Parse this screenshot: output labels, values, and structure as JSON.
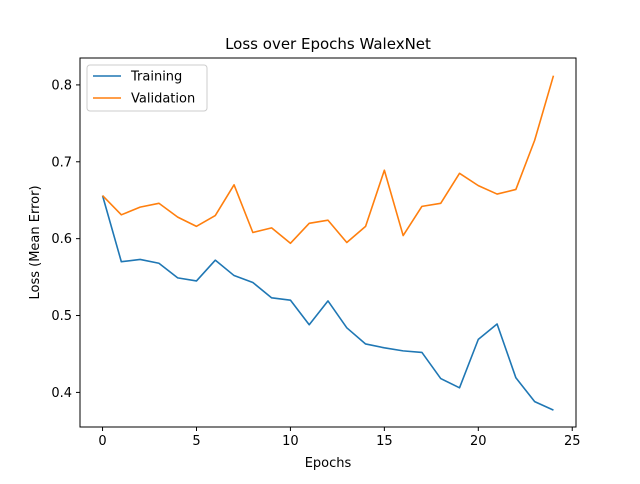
{
  "chart_data": {
    "type": "line",
    "title": "Loss over Epochs WalexNet",
    "xlabel": "Epochs",
    "ylabel": "Loss (Mean Error)",
    "xlim": [
      -1.2,
      25.2
    ],
    "ylim": [
      0.355,
      0.835
    ],
    "xticks": [
      0,
      5,
      10,
      15,
      20,
      25
    ],
    "yticks": [
      0.4,
      0.5,
      0.6,
      0.7,
      0.8
    ],
    "grid": false,
    "legend_position": "top-left",
    "x": [
      0,
      1,
      2,
      3,
      4,
      5,
      6,
      7,
      8,
      9,
      10,
      11,
      12,
      13,
      14,
      15,
      16,
      17,
      18,
      19,
      20,
      21,
      22,
      23,
      24
    ],
    "series": [
      {
        "name": "Training",
        "color": "#1f77b4",
        "values": [
          0.656,
          0.57,
          0.573,
          0.568,
          0.549,
          0.545,
          0.572,
          0.552,
          0.543,
          0.523,
          0.52,
          0.488,
          0.519,
          0.484,
          0.463,
          0.458,
          0.454,
          0.452,
          0.418,
          0.406,
          0.469,
          0.489,
          0.419,
          0.388,
          0.377
        ]
      },
      {
        "name": "Validation",
        "color": "#ff7f0e",
        "values": [
          0.656,
          0.631,
          0.641,
          0.646,
          0.628,
          0.616,
          0.63,
          0.67,
          0.608,
          0.614,
          0.594,
          0.62,
          0.624,
          0.595,
          0.616,
          0.689,
          0.604,
          0.642,
          0.646,
          0.685,
          0.669,
          0.658,
          0.664,
          0.728,
          0.812
        ]
      }
    ]
  }
}
